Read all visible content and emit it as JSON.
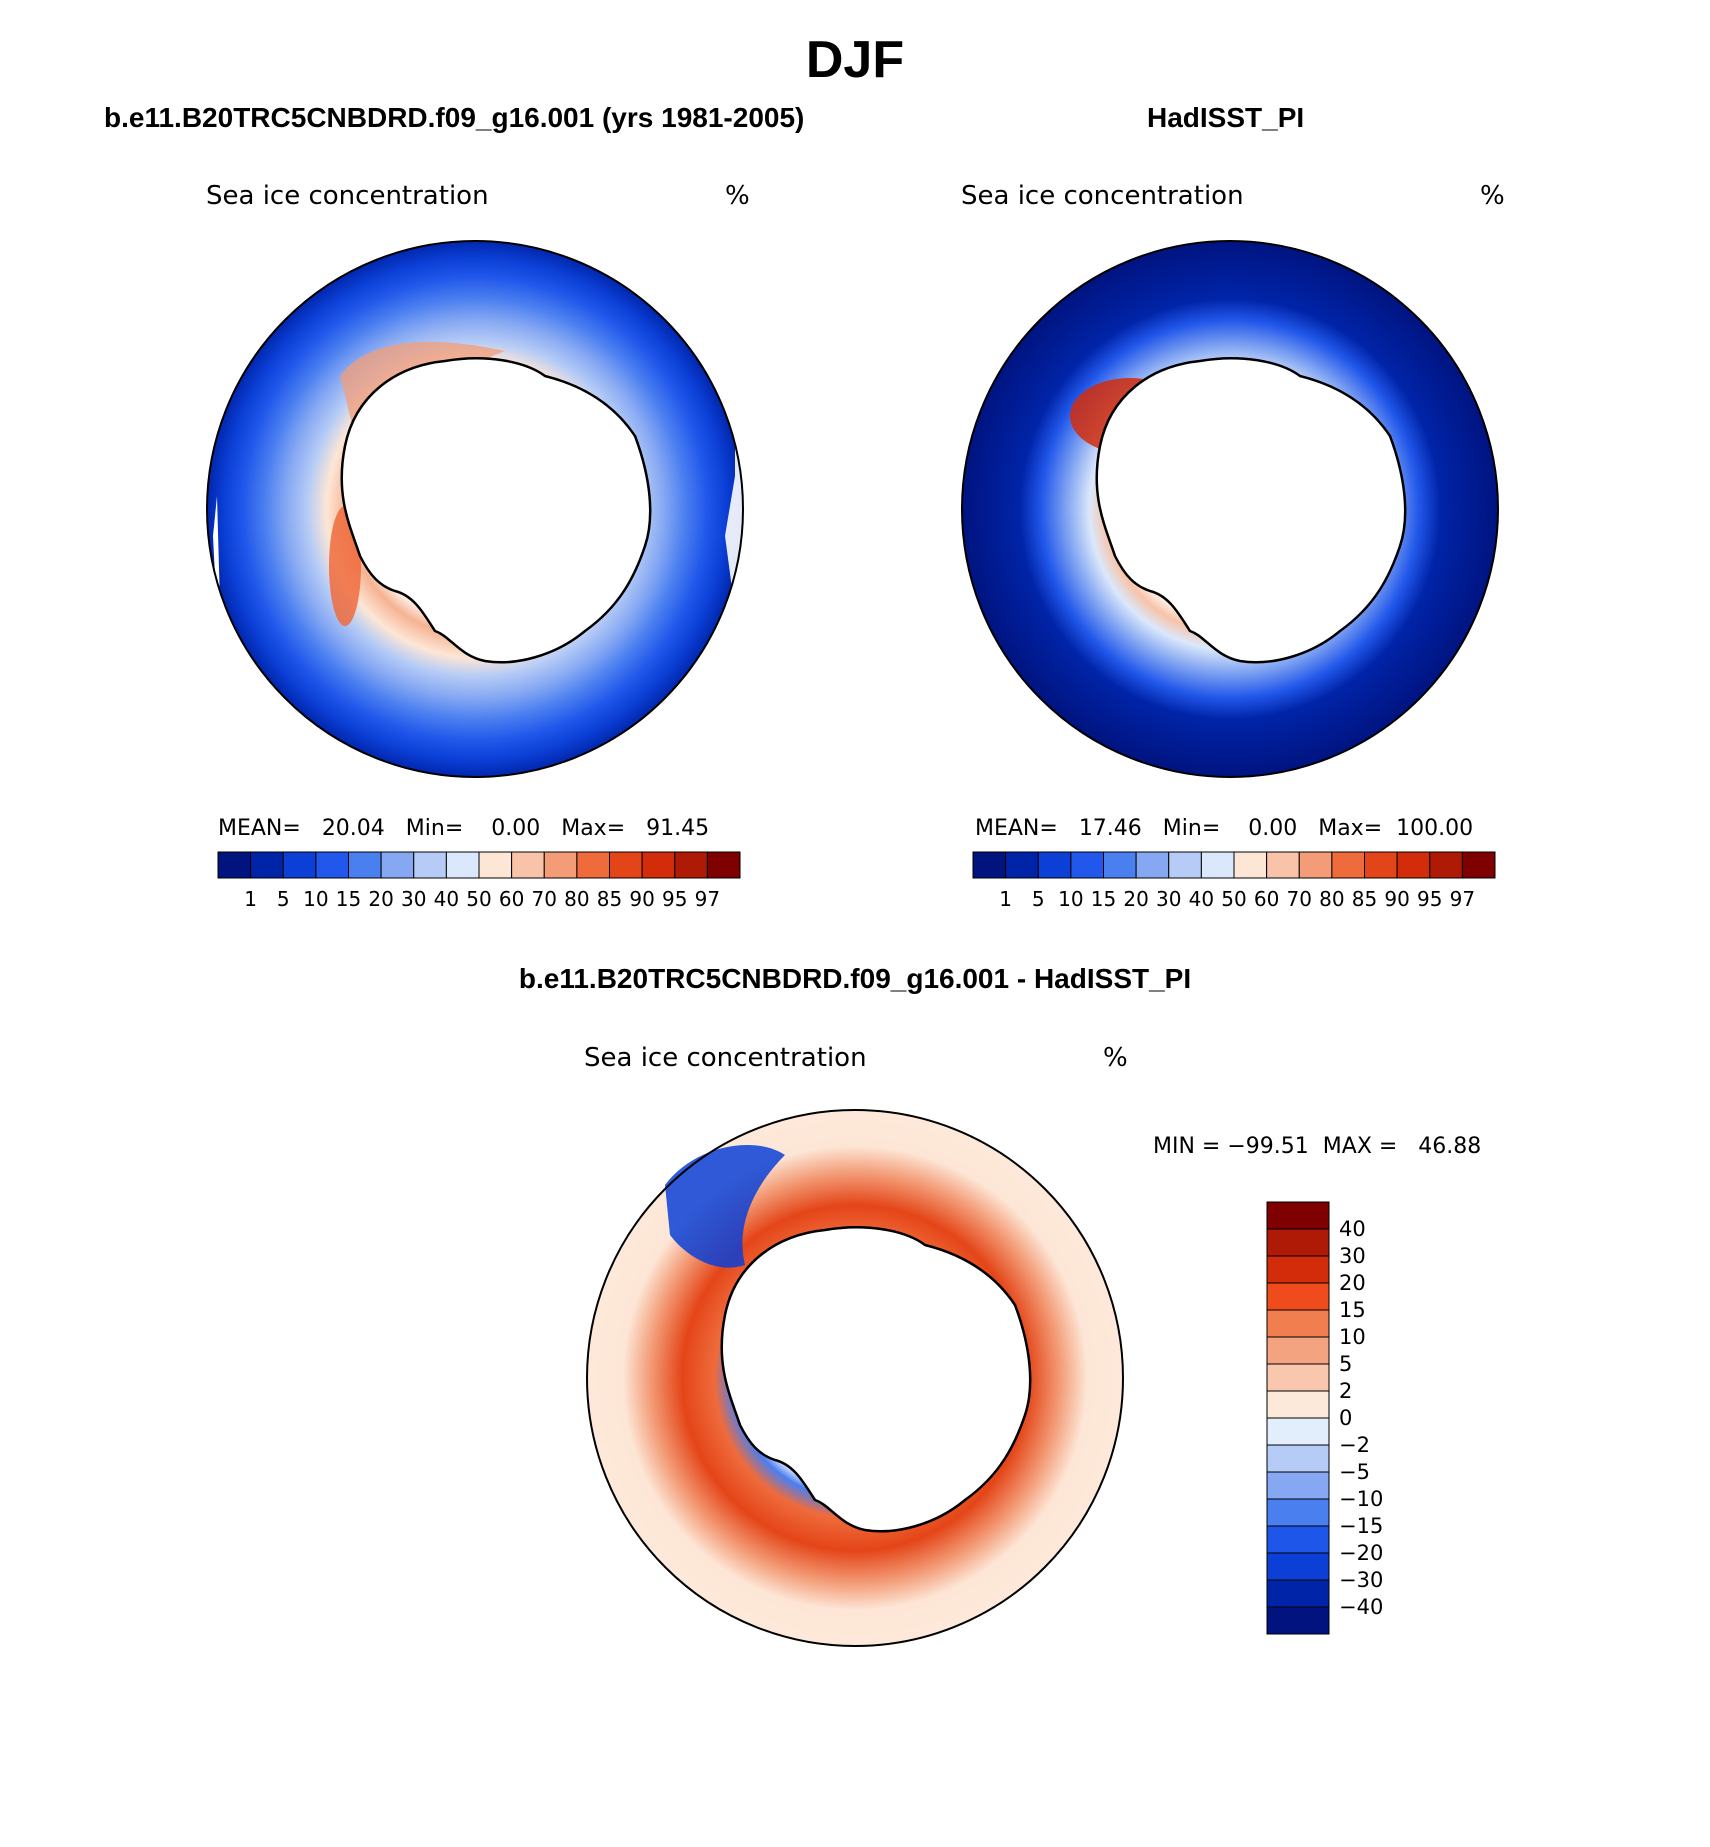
{
  "season": "DJF",
  "panels": {
    "model": {
      "title": "b.e11.B20TRC5CNBDRD.f09_g16.001 (yrs 1981-2005)",
      "variable": "Sea ice concentration",
      "units": "%",
      "stats": {
        "mean_label": "MEAN=",
        "mean": "20.04",
        "min_label": "Min=",
        "min": "0.00",
        "max_label": "Max=",
        "max": "91.45"
      }
    },
    "obs": {
      "title": "HadISST_PI",
      "variable": "Sea ice concentration",
      "units": "%",
      "stats": {
        "mean_label": "MEAN=",
        "mean": "17.46",
        "min_label": "Min=",
        "min": "0.00",
        "max_label": "Max=",
        "max": "100.00"
      }
    },
    "diff": {
      "title": "b.e11.B20TRC5CNBDRD.f09_g16.001 - HadISST_PI",
      "variable": "Sea ice concentration",
      "units": "%",
      "stats": {
        "min_label": "MIN =",
        "min": "−99.51",
        "max_label": "MAX =",
        "max": "46.88"
      }
    }
  },
  "colorbar_abs": {
    "levels": [
      "1",
      "5",
      "10",
      "15",
      "20",
      "30",
      "40",
      "50",
      "60",
      "70",
      "80",
      "85",
      "90",
      "95",
      "97"
    ],
    "colors": [
      "#00137f",
      "#0024a8",
      "#0b3fd6",
      "#2157ea",
      "#4a7ff0",
      "#86a8f3",
      "#b6ccf6",
      "#dbe8fb",
      "#fde6d6",
      "#f8c3a8",
      "#f39c77",
      "#ef6b3c",
      "#e44518",
      "#d22c0b",
      "#ae1a05",
      "#7f0000"
    ]
  },
  "colorbar_diff": {
    "levels": [
      "40",
      "30",
      "20",
      "15",
      "10",
      "5",
      "2",
      "0",
      "−2",
      "−5",
      "−10",
      "−15",
      "−20",
      "−30",
      "−40"
    ],
    "colors": [
      "#7f0000",
      "#ae1a05",
      "#d22c0b",
      "#ef4b1c",
      "#f07e4f",
      "#f3a380",
      "#f8c7ae",
      "#fde9da",
      "#e2eefb",
      "#b6ccf6",
      "#86a8f3",
      "#4a7ff0",
      "#1f56ea",
      "#0b3fd6",
      "#0024a8",
      "#00137f"
    ]
  }
}
